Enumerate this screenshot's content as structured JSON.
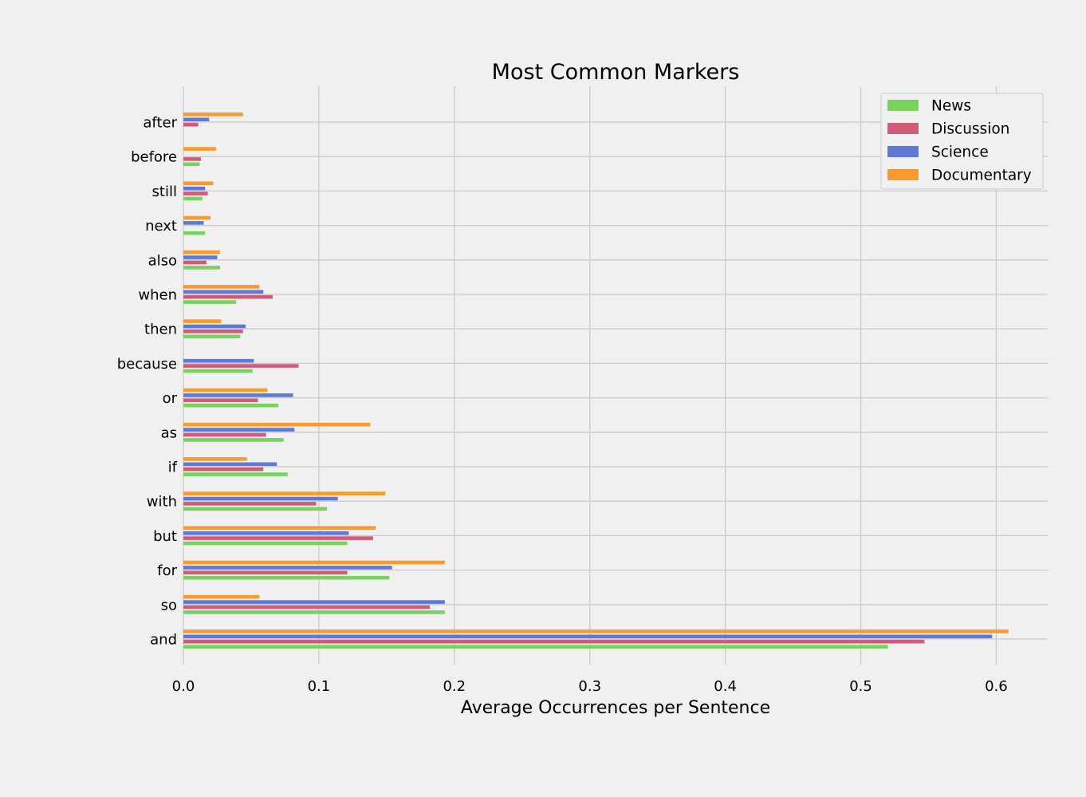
{
  "chart_data": {
    "type": "bar",
    "orientation": "horizontal",
    "title": "Most Common Markers",
    "xlabel": "Average Occurrences per Sentence",
    "ylabel": "",
    "categories": [
      "and",
      "so",
      "for",
      "but",
      "with",
      "if",
      "as",
      "or",
      "because",
      "then",
      "when",
      "also",
      "next",
      "still",
      "before",
      "after"
    ],
    "xlim": [
      0,
      0.638
    ],
    "xticks": [
      "0.0",
      "0.1",
      "0.2",
      "0.3",
      "0.4",
      "0.5",
      "0.6"
    ],
    "grid": true,
    "legend_position": "top-right",
    "series": [
      {
        "name": "News",
        "color": "#77d35b",
        "values": [
          0.52,
          0.193,
          0.152,
          0.121,
          0.106,
          0.077,
          0.074,
          0.07,
          0.051,
          0.042,
          0.039,
          0.027,
          0.016,
          0.014,
          0.012,
          0.0
        ]
      },
      {
        "name": "Discussion",
        "color": "#d15b78",
        "values": [
          0.547,
          0.182,
          0.121,
          0.14,
          0.098,
          0.059,
          0.061,
          0.055,
          0.085,
          0.044,
          0.066,
          0.017,
          0.0,
          0.018,
          0.013,
          0.011
        ]
      },
      {
        "name": "Science",
        "color": "#5f7ad6",
        "values": [
          0.597,
          0.193,
          0.154,
          0.122,
          0.114,
          0.069,
          0.082,
          0.081,
          0.052,
          0.046,
          0.059,
          0.025,
          0.015,
          0.016,
          0.0,
          0.019
        ]
      },
      {
        "name": "Documentary",
        "color": "#fb9a2c",
        "values": [
          0.609,
          0.056,
          0.193,
          0.142,
          0.149,
          0.047,
          0.138,
          0.062,
          0.0,
          0.028,
          0.056,
          0.027,
          0.02,
          0.022,
          0.024,
          0.044
        ]
      }
    ]
  }
}
